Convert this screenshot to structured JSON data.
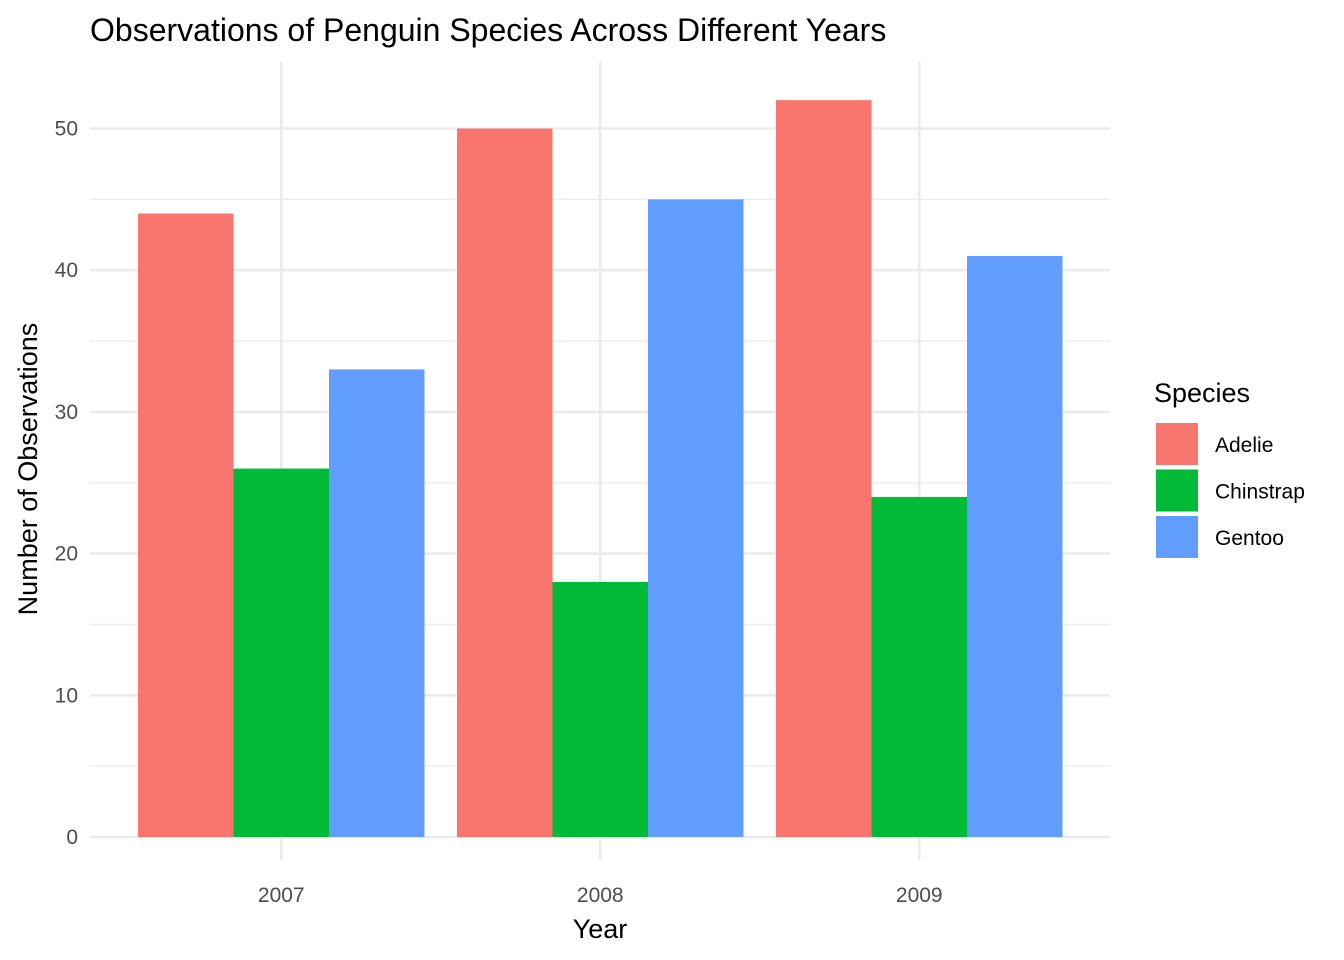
{
  "chart_data": {
    "type": "bar",
    "title": "Observations of Penguin Species Across Different Years",
    "xlabel": "Year",
    "ylabel": "Number of Observations",
    "categories": [
      "2007",
      "2008",
      "2009"
    ],
    "series": [
      {
        "name": "Adelie",
        "values": [
          44,
          50,
          52
        ],
        "color": "#F8766D"
      },
      {
        "name": "Chinstrap",
        "values": [
          26,
          18,
          24
        ],
        "color": "#00BA38"
      },
      {
        "name": "Gentoo",
        "values": [
          33,
          45,
          41
        ],
        "color": "#619CFF"
      }
    ],
    "ylim": [
      0,
      54.6
    ],
    "yticks": [
      0,
      10,
      20,
      30,
      40,
      50
    ],
    "grid": true,
    "legend": {
      "title": "Species",
      "position": "right"
    }
  }
}
